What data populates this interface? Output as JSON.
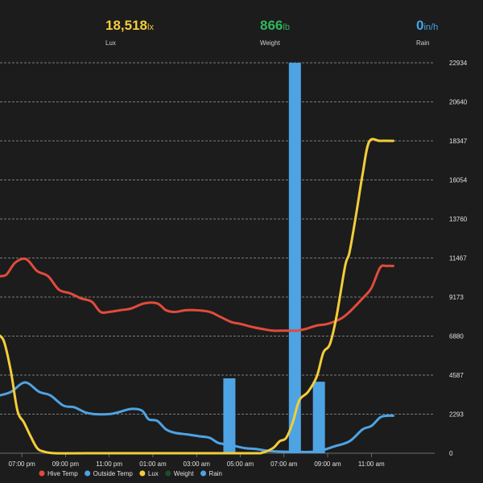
{
  "stats": [
    {
      "value": "18,518",
      "unit": "lx",
      "label": "Lux",
      "color": "#f3cd3a"
    },
    {
      "value": "866",
      "unit": "lb",
      "label": "Weight",
      "color": "#2fb65c"
    },
    {
      "value": "0",
      "unit": "in/h",
      "label": "Rain",
      "color": "#43a5e6"
    }
  ],
  "chart_data": {
    "type": "line",
    "title": "",
    "xlabel": "",
    "ylabel": "",
    "ylim": [
      0,
      22934
    ],
    "yticks": [
      0,
      2293,
      4587,
      6880,
      9173,
      11467,
      13760,
      16054,
      18347,
      20640,
      22934
    ],
    "xlim": [
      0,
      19.9
    ],
    "xticks": [
      {
        "x": 1.0,
        "label": "07:00 pm"
      },
      {
        "x": 3.0,
        "label": "09:00 pm"
      },
      {
        "x": 5.0,
        "label": "11:00 pm"
      },
      {
        "x": 7.0,
        "label": "01:00 am"
      },
      {
        "x": 9.0,
        "label": "03:00 am"
      },
      {
        "x": 11.0,
        "label": "05:00 am"
      },
      {
        "x": 13.0,
        "label": "07:00 am"
      },
      {
        "x": 15.0,
        "label": "09:00 am"
      },
      {
        "x": 17.0,
        "label": "11:00 am"
      }
    ],
    "series": [
      {
        "name": "Hive Temp",
        "type": "line",
        "color": "#e24b3c",
        "points": [
          [
            0.0,
            10400
          ],
          [
            0.3,
            10500
          ],
          [
            0.7,
            11200
          ],
          [
            1.2,
            11400
          ],
          [
            1.7,
            10700
          ],
          [
            2.2,
            10400
          ],
          [
            2.7,
            9600
          ],
          [
            3.2,
            9400
          ],
          [
            3.7,
            9100
          ],
          [
            4.2,
            8900
          ],
          [
            4.6,
            8300
          ],
          [
            5.0,
            8300
          ],
          [
            5.5,
            8400
          ],
          [
            6.0,
            8500
          ],
          [
            6.6,
            8800
          ],
          [
            7.2,
            8800
          ],
          [
            7.6,
            8400
          ],
          [
            8.0,
            8300
          ],
          [
            8.5,
            8400
          ],
          [
            9.0,
            8400
          ],
          [
            9.6,
            8300
          ],
          [
            10.1,
            8000
          ],
          [
            10.6,
            7700
          ],
          [
            11.0,
            7600
          ],
          [
            11.6,
            7400
          ],
          [
            12.0,
            7300
          ],
          [
            12.5,
            7200
          ],
          [
            13.1,
            7200
          ],
          [
            13.6,
            7200
          ],
          [
            14.0,
            7300
          ],
          [
            14.5,
            7500
          ],
          [
            15.0,
            7600
          ],
          [
            15.6,
            7900
          ],
          [
            16.0,
            8300
          ],
          [
            16.6,
            9100
          ],
          [
            17.0,
            9700
          ],
          [
            17.4,
            10900
          ],
          [
            17.7,
            11000
          ],
          [
            18.0,
            11000
          ]
        ]
      },
      {
        "name": "Outside Temp",
        "type": "line",
        "color": "#4ea3e3",
        "points": [
          [
            0.0,
            3400
          ],
          [
            0.5,
            3600
          ],
          [
            1.0,
            4100
          ],
          [
            1.3,
            4100
          ],
          [
            1.8,
            3600
          ],
          [
            2.3,
            3400
          ],
          [
            2.9,
            2800
          ],
          [
            3.4,
            2700
          ],
          [
            3.9,
            2400
          ],
          [
            4.3,
            2300
          ],
          [
            5.0,
            2300
          ],
          [
            5.4,
            2400
          ],
          [
            6.0,
            2600
          ],
          [
            6.5,
            2500
          ],
          [
            6.8,
            2000
          ],
          [
            7.2,
            1900
          ],
          [
            7.6,
            1400
          ],
          [
            8.0,
            1200
          ],
          [
            8.6,
            1100
          ],
          [
            9.1,
            1000
          ],
          [
            9.6,
            900
          ],
          [
            10.0,
            600
          ],
          [
            10.5,
            500
          ],
          [
            11.2,
            300
          ],
          [
            11.7,
            250
          ],
          [
            12.2,
            150
          ],
          [
            12.7,
            100
          ],
          [
            13.5,
            80
          ],
          [
            14.5,
            100
          ],
          [
            15.3,
            400
          ],
          [
            16.0,
            700
          ],
          [
            16.6,
            1400
          ],
          [
            17.0,
            1600
          ],
          [
            17.4,
            2100
          ],
          [
            17.7,
            2200
          ],
          [
            18.0,
            2200
          ]
        ]
      },
      {
        "name": "Lux",
        "type": "line",
        "color": "#f3cd3a",
        "points": [
          [
            0.0,
            6900
          ],
          [
            0.2,
            6500
          ],
          [
            0.5,
            4800
          ],
          [
            0.8,
            2500
          ],
          [
            1.1,
            1800
          ],
          [
            1.4,
            1000
          ],
          [
            1.7,
            300
          ],
          [
            2.0,
            100
          ],
          [
            2.5,
            0
          ],
          [
            4.0,
            0
          ],
          [
            8.0,
            0
          ],
          [
            11.5,
            0
          ],
          [
            12.0,
            30
          ],
          [
            12.5,
            300
          ],
          [
            12.8,
            700
          ],
          [
            13.1,
            900
          ],
          [
            13.4,
            1800
          ],
          [
            13.7,
            3100
          ],
          [
            14.1,
            3600
          ],
          [
            14.5,
            4500
          ],
          [
            14.8,
            5900
          ],
          [
            15.1,
            6400
          ],
          [
            15.4,
            8000
          ],
          [
            15.8,
            11000
          ],
          [
            16.0,
            11800
          ],
          [
            16.3,
            14000
          ],
          [
            16.6,
            16400
          ],
          [
            16.9,
            18300
          ],
          [
            17.4,
            18347
          ],
          [
            18.0,
            18347
          ]
        ]
      },
      {
        "name": "Weight",
        "type": "line",
        "color": "#1f4d2b",
        "points": []
      },
      {
        "name": "Rain",
        "type": "bar",
        "color": "#4ea3e3",
        "points": [
          [
            10.5,
            4400
          ],
          [
            13.5,
            22934
          ],
          [
            14.6,
            4200
          ]
        ]
      }
    ],
    "legend": [
      "Hive Temp",
      "Outside Temp",
      "Lux",
      "Weight",
      "Rain"
    ],
    "legend_position": "bottom",
    "grid": true
  }
}
